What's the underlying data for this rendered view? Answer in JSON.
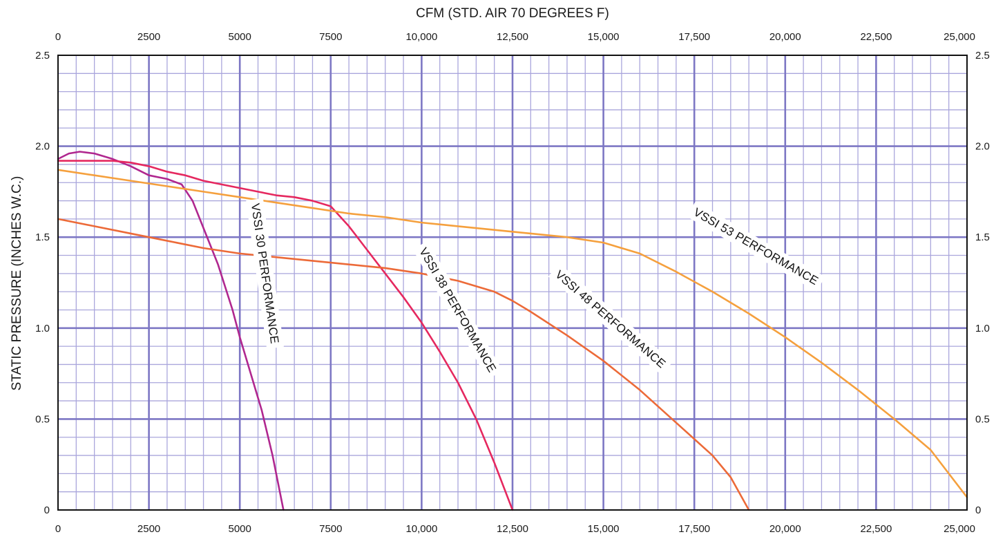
{
  "chart_data": {
    "type": "line",
    "title": "",
    "xlabel_top": "CFM (STD. AIR 70 DEGREES F)",
    "ylabel": "STATIC PRESSURE (INCHES W.C.)",
    "xlim": [
      0,
      25000
    ],
    "ylim": [
      0,
      2.5
    ],
    "x_ticks": [
      0,
      2500,
      5000,
      7500,
      10000,
      12500,
      15000,
      17500,
      20000,
      22500,
      25000
    ],
    "x_tick_labels": [
      "0",
      "2500",
      "5000",
      "7500",
      "10,000",
      "12,500",
      "15,000",
      "17,500",
      "20,000",
      "22,500",
      "25,000"
    ],
    "y_ticks": [
      0,
      0.5,
      1.0,
      1.5,
      2.0,
      2.5
    ],
    "y_tick_labels": [
      "0",
      "0.5",
      "1.0",
      "1.5",
      "2.0",
      "2.5"
    ],
    "x_minor_step": 500,
    "y_minor_step": 0.1,
    "grid": true,
    "legend": "none",
    "series": [
      {
        "name": "VSSI 30 PERFORMANCE",
        "color": "#b0278f",
        "label_x": 5700,
        "label_y": 1.3,
        "label_angle": 82,
        "x": [
          0,
          300,
          600,
          1000,
          1500,
          2000,
          2500,
          3000,
          3400,
          3700,
          4000,
          4400,
          4800,
          5000,
          5300,
          5600,
          5900,
          6100,
          6200
        ],
        "y": [
          1.93,
          1.96,
          1.97,
          1.96,
          1.93,
          1.89,
          1.84,
          1.82,
          1.79,
          1.7,
          1.55,
          1.35,
          1.1,
          0.95,
          0.75,
          0.55,
          0.3,
          0.1,
          0
        ]
      },
      {
        "name": "VSSI 38 PERFORMANCE",
        "color": "#e5285f",
        "label_x": 11000,
        "label_y": 1.1,
        "label_angle": 60,
        "x": [
          0,
          500,
          1000,
          1500,
          2000,
          2500,
          3000,
          3500,
          4000,
          4500,
          5000,
          5500,
          6000,
          6500,
          7000,
          7500,
          8000,
          8500,
          9000,
          9500,
          10000,
          10500,
          11000,
          11500,
          12000,
          12500
        ],
        "y": [
          1.92,
          1.92,
          1.92,
          1.92,
          1.91,
          1.89,
          1.86,
          1.84,
          1.81,
          1.79,
          1.77,
          1.75,
          1.73,
          1.72,
          1.7,
          1.67,
          1.56,
          1.43,
          1.3,
          1.17,
          1.03,
          0.87,
          0.7,
          0.5,
          0.26,
          0
        ]
      },
      {
        "name": "VSSI 48 PERFORMANCE",
        "color": "#ec6a38",
        "label_x": 15200,
        "label_y": 1.05,
        "label_angle": 41,
        "x": [
          0,
          1000,
          2000,
          3000,
          4000,
          5000,
          6000,
          7000,
          8000,
          9000,
          10000,
          11000,
          12000,
          12500,
          13000,
          14000,
          15000,
          16000,
          17000,
          18000,
          18500,
          19000
        ],
        "y": [
          1.6,
          1.56,
          1.52,
          1.48,
          1.44,
          1.41,
          1.39,
          1.37,
          1.35,
          1.33,
          1.3,
          1.26,
          1.2,
          1.15,
          1.09,
          0.96,
          0.82,
          0.66,
          0.48,
          0.3,
          0.18,
          0
        ]
      },
      {
        "name": "VSSI 53 PERFORMANCE",
        "color": "#f5a03d",
        "label_x": 19200,
        "label_y": 1.45,
        "label_angle": 30,
        "x": [
          0,
          1000,
          2000,
          3000,
          4000,
          5000,
          6000,
          7000,
          8000,
          9000,
          10000,
          11000,
          12000,
          13000,
          14000,
          15000,
          16000,
          17000,
          18000,
          19000,
          20000,
          21000,
          22000,
          23000,
          24000,
          25000
        ],
        "y": [
          1.87,
          1.84,
          1.81,
          1.78,
          1.75,
          1.72,
          1.69,
          1.66,
          1.63,
          1.61,
          1.58,
          1.56,
          1.54,
          1.52,
          1.5,
          1.47,
          1.41,
          1.31,
          1.2,
          1.08,
          0.95,
          0.81,
          0.66,
          0.5,
          0.33,
          0.07
        ]
      }
    ]
  }
}
